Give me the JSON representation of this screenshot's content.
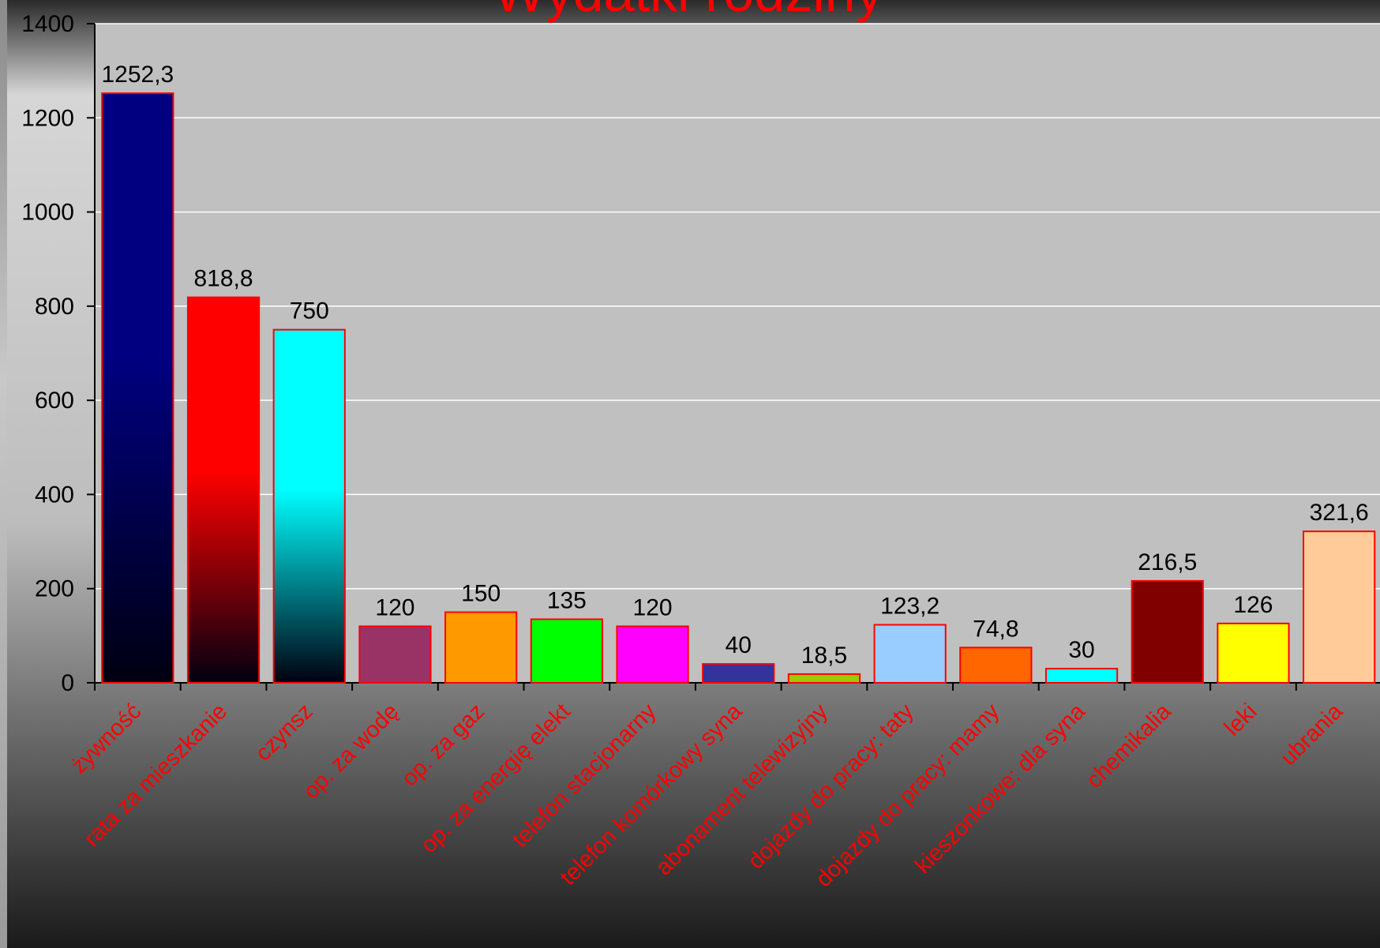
{
  "chart_data": {
    "type": "bar",
    "title": "Wydatki rodziny",
    "ylim": [
      0,
      1400
    ],
    "yticks": [
      0,
      200,
      400,
      600,
      800,
      1000,
      1200,
      1400
    ],
    "grid": true,
    "categories": [
      "żywność",
      "rata za mieszkanie",
      "czynsz",
      "op. za wodę",
      "op. za gaz",
      "op. za energię elekt",
      "telefon stacjonarny",
      "telefon komórkowy syna",
      "abonament telewizyjny",
      "dojazdy do pracy: taty",
      "dojazdy do pracy: mamy",
      "kieszonkowe: dla syna",
      "chemikalia",
      "leki",
      "ubrania"
    ],
    "values": [
      1252.3,
      818.8,
      750,
      120,
      150,
      135,
      120,
      40,
      18.5,
      123.2,
      74.8,
      30,
      216.5,
      126,
      321.6
    ],
    "value_labels": [
      "1252,3",
      "818,8",
      "750",
      "120",
      "150",
      "135",
      "120",
      "40",
      "18,5",
      "123,2",
      "74,8",
      "30",
      "216,5",
      "126",
      "321,6"
    ],
    "colors": [
      "#000080",
      "#ff0000",
      "#00ffff",
      "#993366",
      "#ff9900",
      "#00ff00",
      "#ff00ff",
      "#333399",
      "#99cc00",
      "#99ccff",
      "#ff6600",
      "#00ffff",
      "#800000",
      "#ffff00",
      "#ffcc99"
    ],
    "bar_outline_color": "#ff0000",
    "category_label_color": "#ff0000"
  }
}
